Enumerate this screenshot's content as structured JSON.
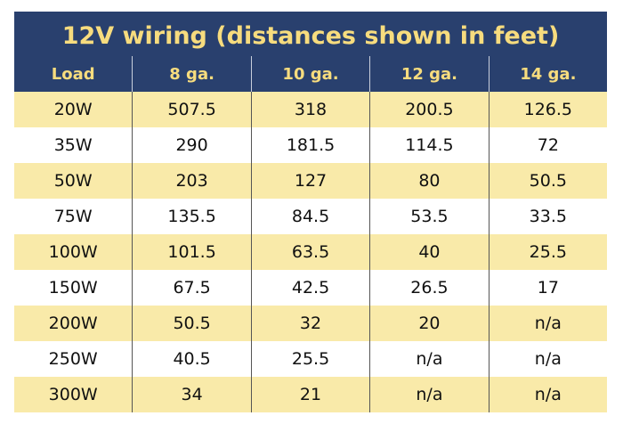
{
  "chart_data": {
    "type": "table",
    "title": "12V wiring (distances shown in feet)",
    "columns": [
      "Load",
      "8 ga.",
      "10 ga.",
      "12 ga.",
      "14 ga."
    ],
    "rows": [
      [
        "20W",
        "507.5",
        "318",
        "200.5",
        "126.5"
      ],
      [
        "35W",
        "290",
        "181.5",
        "114.5",
        "72"
      ],
      [
        "50W",
        "203",
        "127",
        "80",
        "50.5"
      ],
      [
        "75W",
        "135.5",
        "84.5",
        "53.5",
        "33.5"
      ],
      [
        "100W",
        "101.5",
        "63.5",
        "40",
        "25.5"
      ],
      [
        "150W",
        "67.5",
        "42.5",
        "26.5",
        "17"
      ],
      [
        "200W",
        "50.5",
        "32",
        "20",
        "n/a"
      ],
      [
        "250W",
        "40.5",
        "25.5",
        "n/a",
        "n/a"
      ],
      [
        "300W",
        "34",
        "21",
        "n/a",
        "n/a"
      ]
    ]
  },
  "colors": {
    "header_bg": "#29406e",
    "header_text": "#f7dc7e",
    "stripe": "#f9eaa9"
  }
}
